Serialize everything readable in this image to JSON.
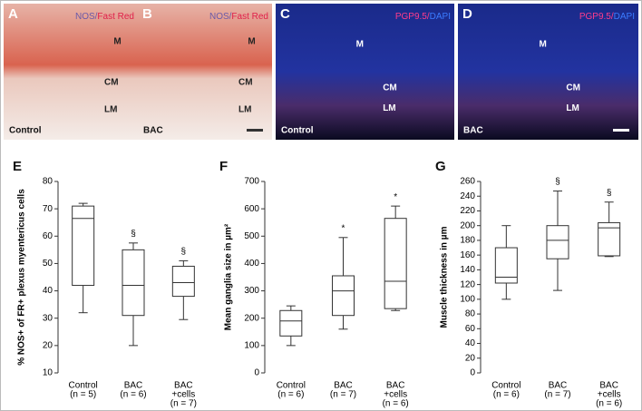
{
  "panels": [
    {
      "letter": "A",
      "stain": [
        "NOS/",
        "Fast Red"
      ],
      "layers": [
        "M",
        "CM",
        "LM"
      ],
      "group": "Control"
    },
    {
      "letter": "B",
      "stain": [
        "NOS/",
        "Fast Red"
      ],
      "layers": [
        "M",
        "CM",
        "LM"
      ],
      "group": "BAC"
    },
    {
      "letter": "C",
      "stain": [
        "PGP9.5/",
        "DAPI"
      ],
      "layers": [
        "M",
        "CM",
        "LM"
      ],
      "group": "Control"
    },
    {
      "letter": "D",
      "stain": [
        "PGP9.5/",
        "DAPI"
      ],
      "layers": [
        "M",
        "CM",
        "LM"
      ],
      "group": "BAC"
    }
  ],
  "chart_data": [
    {
      "type": "box",
      "letter": "E",
      "y_label": "% NOS+ of FR+ plexus myentericus cells",
      "category_lines": [
        [
          "Control"
        ],
        [
          "BAC"
        ],
        [
          "BAC",
          "+cells"
        ]
      ],
      "n_labels": [
        "(n = 5)",
        "(n = 6)",
        "(n = 7)"
      ],
      "annotations": [
        null,
        "§",
        "§"
      ],
      "boxes": [
        {
          "min": 32,
          "q1": 42,
          "median": 66.5,
          "q3": 71,
          "max": 72
        },
        {
          "min": 20,
          "q1": 31,
          "median": 42,
          "q3": 55,
          "max": 57.5
        },
        {
          "min": 29.5,
          "q1": 38,
          "median": 43,
          "q3": 49,
          "max": 51
        }
      ],
      "ylim": [
        10,
        80
      ],
      "yticks": [
        10,
        20,
        30,
        40,
        50,
        60,
        70,
        80
      ]
    },
    {
      "type": "box",
      "letter": "F",
      "y_label": "Mean ganglia size in µm²",
      "category_lines": [
        [
          "Control"
        ],
        [
          "BAC"
        ],
        [
          "BAC",
          "+cells"
        ]
      ],
      "n_labels": [
        "(n = 6)",
        "(n = 7)",
        "(n = 6)"
      ],
      "annotations": [
        null,
        "*",
        "*"
      ],
      "boxes": [
        {
          "min": 100,
          "q1": 135,
          "median": 190,
          "q3": 228,
          "max": 245
        },
        {
          "min": 160,
          "q1": 210,
          "median": 300,
          "q3": 355,
          "max": 495
        },
        {
          "min": 228,
          "q1": 235,
          "median": 335,
          "q3": 565,
          "max": 610
        }
      ],
      "ylim": [
        0,
        700
      ],
      "yticks": [
        0,
        100,
        200,
        300,
        400,
        500,
        600,
        700
      ]
    },
    {
      "type": "box",
      "letter": "G",
      "y_label": "Muscle thickness in µm",
      "category_lines": [
        [
          "Control"
        ],
        [
          "BAC"
        ],
        [
          "BAC",
          "+cells"
        ]
      ],
      "n_labels": [
        "(n = 6)",
        "(n = 7)",
        "(n = 6)"
      ],
      "annotations": [
        null,
        "§",
        "§"
      ],
      "boxes": [
        {
          "min": 100,
          "q1": 122,
          "median": 130,
          "q3": 170,
          "max": 200
        },
        {
          "min": 112,
          "q1": 155,
          "median": 180,
          "q3": 200,
          "max": 247
        },
        {
          "min": 158,
          "q1": 159,
          "median": 197,
          "q3": 204,
          "max": 232
        }
      ],
      "ylim": [
        0,
        260
      ],
      "yticks": [
        0,
        20,
        40,
        60,
        80,
        100,
        120,
        140,
        160,
        180,
        200,
        220,
        240,
        260
      ]
    }
  ]
}
